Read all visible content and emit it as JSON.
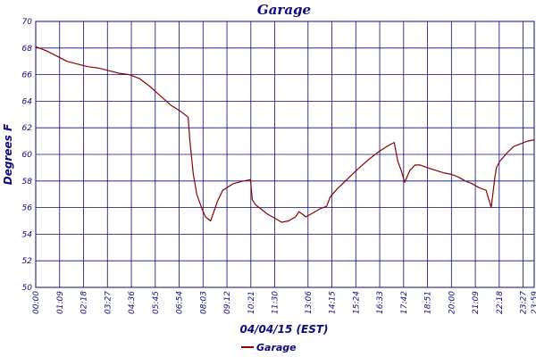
{
  "chart_data": {
    "type": "line",
    "title": "Garage",
    "xlabel": "04/04/15 (EST)",
    "ylabel": "Degrees F",
    "ylim": [
      50,
      70
    ],
    "y_ticks": [
      "50",
      "52",
      "54",
      "56",
      "58",
      "60",
      "62",
      "64",
      "66",
      "68",
      "70"
    ],
    "x_ticks": [
      "00:00",
      "01:09",
      "02:18",
      "03:27",
      "04:36",
      "05:45",
      "06:54",
      "08:03",
      "09:12",
      "10:21",
      "11:30",
      "13:06",
      "14:15",
      "15:24",
      "16:33",
      "17:42",
      "18:51",
      "20:00",
      "21:09",
      "22:18",
      "23:27",
      "23:59"
    ],
    "grid": true,
    "legend_position": "bottom",
    "colors": {
      "axis": "#0b0b7a",
      "grid": "#0b0b7a",
      "series": "#8b0000"
    },
    "series": [
      {
        "name": "Garage",
        "x": [
          "00:00",
          "00:30",
          "01:00",
          "01:30",
          "02:00",
          "02:30",
          "03:00",
          "03:30",
          "04:00",
          "04:30",
          "05:00",
          "05:30",
          "06:00",
          "06:30",
          "07:00",
          "07:20",
          "07:25",
          "07:35",
          "07:45",
          "08:00",
          "08:10",
          "08:25",
          "08:45",
          "09:00",
          "09:30",
          "10:00",
          "10:20",
          "10:25",
          "10:35",
          "10:50",
          "11:10",
          "11:30",
          "11:50",
          "12:10",
          "12:30",
          "12:40",
          "13:00",
          "13:20",
          "13:40",
          "14:00",
          "14:10",
          "14:30",
          "14:50",
          "15:10",
          "15:30",
          "16:00",
          "16:30",
          "17:00",
          "17:15",
          "17:25",
          "17:35",
          "17:45",
          "18:00",
          "18:15",
          "18:30",
          "18:51",
          "19:15",
          "19:40",
          "20:00",
          "20:20",
          "20:40",
          "21:00",
          "21:20",
          "21:40",
          "21:55",
          "22:05",
          "22:10",
          "22:20",
          "22:40",
          "23:00",
          "23:20",
          "23:40",
          "23:59"
        ],
        "values": [
          68.1,
          67.8,
          67.4,
          67.0,
          66.8,
          66.6,
          66.5,
          66.3,
          66.1,
          66.0,
          65.7,
          65.1,
          64.4,
          63.7,
          63.2,
          62.8,
          61.0,
          58.5,
          57.0,
          55.9,
          55.3,
          55.0,
          56.5,
          57.3,
          57.8,
          58.0,
          58.1,
          56.6,
          56.2,
          55.9,
          55.5,
          55.2,
          54.9,
          55.0,
          55.3,
          55.7,
          55.3,
          55.6,
          55.9,
          56.1,
          56.8,
          57.4,
          57.9,
          58.4,
          58.9,
          59.6,
          60.2,
          60.7,
          60.9,
          59.5,
          58.8,
          57.9,
          58.8,
          59.2,
          59.2,
          59.0,
          58.8,
          58.6,
          58.5,
          58.3,
          58.0,
          57.8,
          57.5,
          57.3,
          56.0,
          58.2,
          59.0,
          59.5,
          60.1,
          60.6,
          60.8,
          61.0,
          61.1
        ]
      }
    ]
  }
}
